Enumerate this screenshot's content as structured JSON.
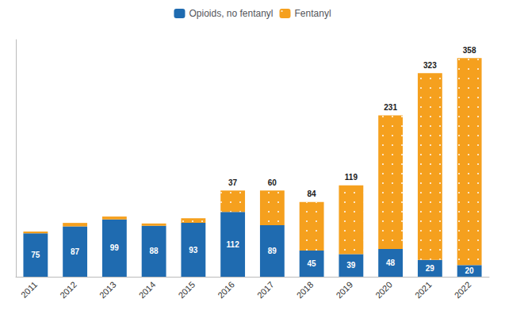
{
  "chart_data": {
    "type": "bar",
    "categories": [
      "2011",
      "2012",
      "2013",
      "2014",
      "2015",
      "2016",
      "2017",
      "2018",
      "2019",
      "2020",
      "2021",
      "2022"
    ],
    "series": [
      {
        "name": "Opioids, no fentanyl",
        "color": "#1F6BB0",
        "values": [
          75,
          87,
          99,
          88,
          93,
          112,
          89,
          45,
          39,
          48,
          29,
          20
        ]
      },
      {
        "name": "Fentanyl",
        "color": "#F5A01E",
        "values": [
          3,
          6,
          5,
          4,
          8,
          37,
          60,
          84,
          119,
          231,
          323,
          358
        ],
        "value_labels": [
          null,
          null,
          null,
          null,
          null,
          "37",
          "60",
          "84",
          "119",
          "231",
          "323",
          "358"
        ]
      }
    ],
    "stacked": true,
    "data_labels": true,
    "ylim": [
      0,
      410
    ],
    "tick_labels": "x",
    "grid": false,
    "legend": "top"
  }
}
